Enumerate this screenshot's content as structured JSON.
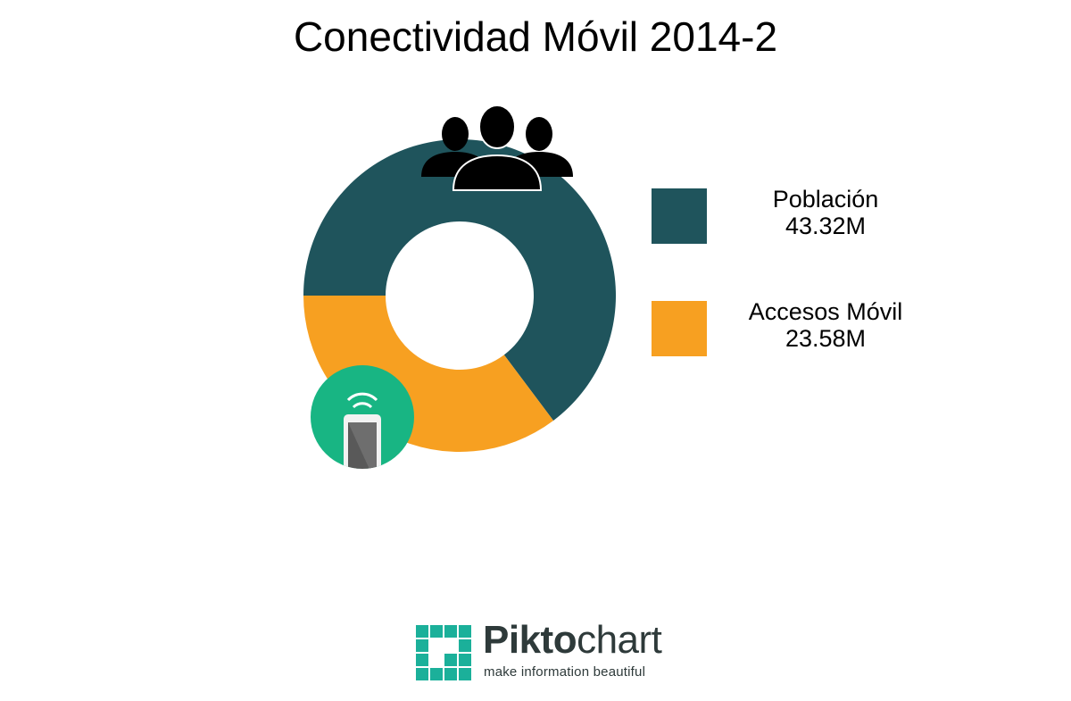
{
  "chart_data": {
    "type": "pie",
    "title": "Conectividad Móvil 2014-2",
    "categories": [
      "Población",
      "Accesos Móvil"
    ],
    "values": [
      43.32,
      23.58
    ],
    "value_labels": [
      "43.32M",
      "23.58M"
    ],
    "colors": [
      "#1f545c",
      "#f7a021"
    ],
    "donut": true,
    "legend_position": "right"
  },
  "icons": {
    "population": "people-group-icon",
    "mobile": "smartphone-wifi-icon"
  },
  "branding": {
    "name_bold": "Pikto",
    "name_light": "chart",
    "tagline": "make information beautiful",
    "color": "#1bb09a"
  }
}
